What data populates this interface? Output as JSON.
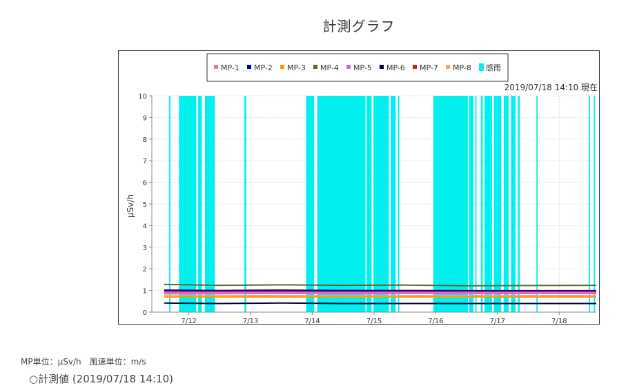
{
  "page_title": "計測グラフ",
  "units_text": "MP単位：μSv/h　風速単位：m/s",
  "measured_text": "○計測値 (2019/07/18 14:10)",
  "chart_data": {
    "type": "line",
    "timestamp_label": "2019/07/18 14:10 現在",
    "ylabel": "μSv/h",
    "xlabel": "",
    "ylim": [
      0,
      10
    ],
    "yticks": [
      0,
      1,
      2,
      3,
      4,
      5,
      6,
      7,
      8,
      9,
      10
    ],
    "xlim": [
      11.4,
      18.6
    ],
    "xticks": [
      {
        "label": "7/12",
        "day": 12
      },
      {
        "label": "7/13",
        "day": 13
      },
      {
        "label": "7/14",
        "day": 14
      },
      {
        "label": "7/15",
        "day": 15
      },
      {
        "label": "7/16",
        "day": 16
      },
      {
        "label": "7/17",
        "day": 17
      },
      {
        "label": "7/18",
        "day": 18
      }
    ],
    "grid": true,
    "legend_position": "top-center",
    "series": [
      {
        "name": "MP-1",
        "color": "#ff6fa8",
        "values": [
          0.9,
          0.9,
          0.9,
          0.9,
          0.9,
          0.9,
          0.9
        ]
      },
      {
        "name": "MP-2",
        "color": "#0000cc",
        "values": [
          1.02,
          1.0,
          1.02,
          1.0,
          1.0,
          0.99,
          0.99
        ]
      },
      {
        "name": "MP-3",
        "color": "#ff9900",
        "values": [
          0.7,
          0.7,
          0.7,
          0.7,
          0.7,
          0.7,
          0.7
        ]
      },
      {
        "name": "MP-4",
        "color": "#556b2f",
        "values": [
          1.28,
          1.24,
          1.26,
          1.24,
          1.25,
          1.22,
          1.24
        ]
      },
      {
        "name": "MP-5",
        "color": "#cc66ff",
        "values": [
          0.86,
          0.86,
          0.86,
          0.86,
          0.86,
          0.86,
          0.86
        ]
      },
      {
        "name": "MP-6",
        "color": "#000033",
        "values": [
          0.42,
          0.4,
          0.42,
          0.4,
          0.4,
          0.4,
          0.4
        ]
      },
      {
        "name": "MP-7",
        "color": "#cc2222",
        "values": [
          0.95,
          0.95,
          0.95,
          0.95,
          0.95,
          0.95,
          0.95
        ]
      },
      {
        "name": "MP-8",
        "color": "#e0a878",
        "values": [
          0.78,
          0.78,
          0.76,
          0.76,
          0.76,
          0.76,
          0.76
        ]
      }
    ],
    "series_x": [
      11.6,
      12.5,
      13.5,
      14.5,
      15.5,
      16.5,
      18.6
    ],
    "rain": {
      "name": "感雨",
      "color": "#00f0f0",
      "value": 10,
      "intervals": [
        [
          11.68,
          11.7
        ],
        [
          11.84,
          12.12
        ],
        [
          12.15,
          12.21
        ],
        [
          12.26,
          12.42
        ],
        [
          12.9,
          12.93
        ],
        [
          13.9,
          14.03
        ],
        [
          14.08,
          14.86
        ],
        [
          14.88,
          14.96
        ],
        [
          14.99,
          15.24
        ],
        [
          15.27,
          15.35
        ],
        [
          15.39,
          15.41
        ],
        [
          15.96,
          16.52
        ],
        [
          16.54,
          16.61
        ],
        [
          16.64,
          16.66
        ],
        [
          16.73,
          16.76
        ],
        [
          16.79,
          16.91
        ],
        [
          16.94,
          17.06
        ],
        [
          17.1,
          17.18
        ],
        [
          17.22,
          17.29
        ],
        [
          17.33,
          17.36
        ],
        [
          17.63,
          17.65
        ],
        [
          18.48,
          18.5
        ],
        [
          18.56,
          18.58
        ]
      ]
    }
  }
}
